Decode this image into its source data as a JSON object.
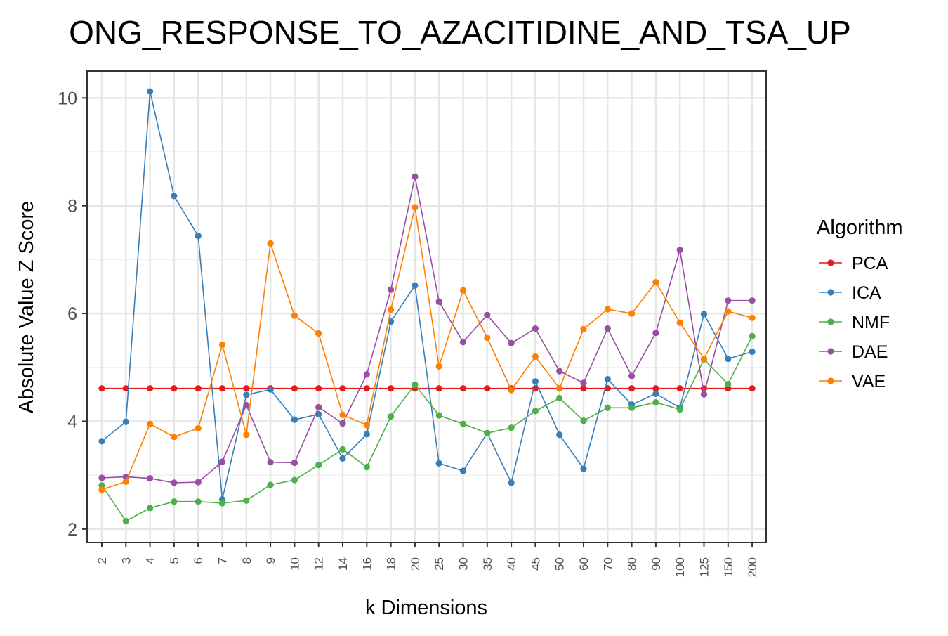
{
  "chart_data": {
    "type": "line",
    "title": "ONG_RESPONSE_TO_AZACITIDINE_AND_TSA_UP",
    "xlabel": "k Dimensions",
    "ylabel": "Absolute Value Z Score",
    "categories": [
      "2",
      "3",
      "4",
      "5",
      "6",
      "7",
      "8",
      "9",
      "10",
      "12",
      "14",
      "16",
      "18",
      "20",
      "25",
      "30",
      "35",
      "40",
      "45",
      "50",
      "60",
      "70",
      "80",
      "90",
      "100",
      "125",
      "150",
      "200"
    ],
    "ylim": [
      1.75,
      10.5
    ],
    "yticks": [
      2,
      4,
      6,
      8,
      10
    ],
    "ytick_labels": [
      "2",
      "4",
      "6",
      "8",
      "10"
    ],
    "grid": true,
    "legend": {
      "title": "Algorithm",
      "position": "right"
    },
    "series": [
      {
        "name": "PCA",
        "color": "#E41A1C",
        "values": [
          4.61,
          4.61,
          4.61,
          4.61,
          4.61,
          4.61,
          4.61,
          4.61,
          4.61,
          4.61,
          4.61,
          4.61,
          4.61,
          4.61,
          4.61,
          4.61,
          4.61,
          4.61,
          4.61,
          4.61,
          4.61,
          4.61,
          4.61,
          4.61,
          4.61,
          4.61,
          4.61,
          4.61
        ]
      },
      {
        "name": "ICA",
        "color": "#377EB8",
        "values": [
          3.63,
          3.99,
          10.12,
          8.18,
          7.44,
          2.55,
          4.49,
          4.59,
          4.03,
          4.13,
          3.31,
          3.76,
          5.85,
          6.52,
          3.22,
          3.08,
          3.78,
          2.86,
          4.74,
          3.75,
          3.12,
          4.78,
          4.31,
          4.51,
          4.25,
          5.99,
          5.16,
          5.29
        ]
      },
      {
        "name": "NMF",
        "color": "#4DAF4A",
        "values": [
          2.81,
          2.15,
          2.39,
          2.51,
          2.51,
          2.48,
          2.53,
          2.82,
          2.91,
          3.19,
          3.48,
          3.15,
          4.09,
          4.68,
          4.11,
          3.95,
          3.78,
          3.88,
          4.19,
          4.43,
          4.01,
          4.25,
          4.25,
          4.35,
          4.22,
          5.15,
          4.69,
          5.58
        ]
      },
      {
        "name": "DAE",
        "color": "#984EA3",
        "values": [
          2.95,
          2.97,
          2.94,
          2.86,
          2.87,
          3.25,
          4.3,
          3.24,
          3.23,
          4.26,
          3.96,
          4.87,
          6.44,
          8.54,
          6.22,
          5.47,
          5.97,
          5.45,
          5.72,
          4.93,
          4.71,
          5.72,
          4.84,
          5.64,
          7.18,
          4.5,
          6.24,
          6.24
        ]
      },
      {
        "name": "VAE",
        "color": "#FF7F00",
        "values": [
          2.73,
          2.88,
          3.95,
          3.71,
          3.87,
          5.42,
          3.75,
          7.3,
          5.96,
          5.63,
          4.12,
          3.93,
          6.07,
          7.97,
          5.02,
          6.43,
          5.55,
          4.58,
          5.2,
          4.61,
          5.71,
          6.08,
          6.0,
          6.58,
          5.83,
          5.16,
          6.04,
          5.92
        ]
      }
    ]
  }
}
